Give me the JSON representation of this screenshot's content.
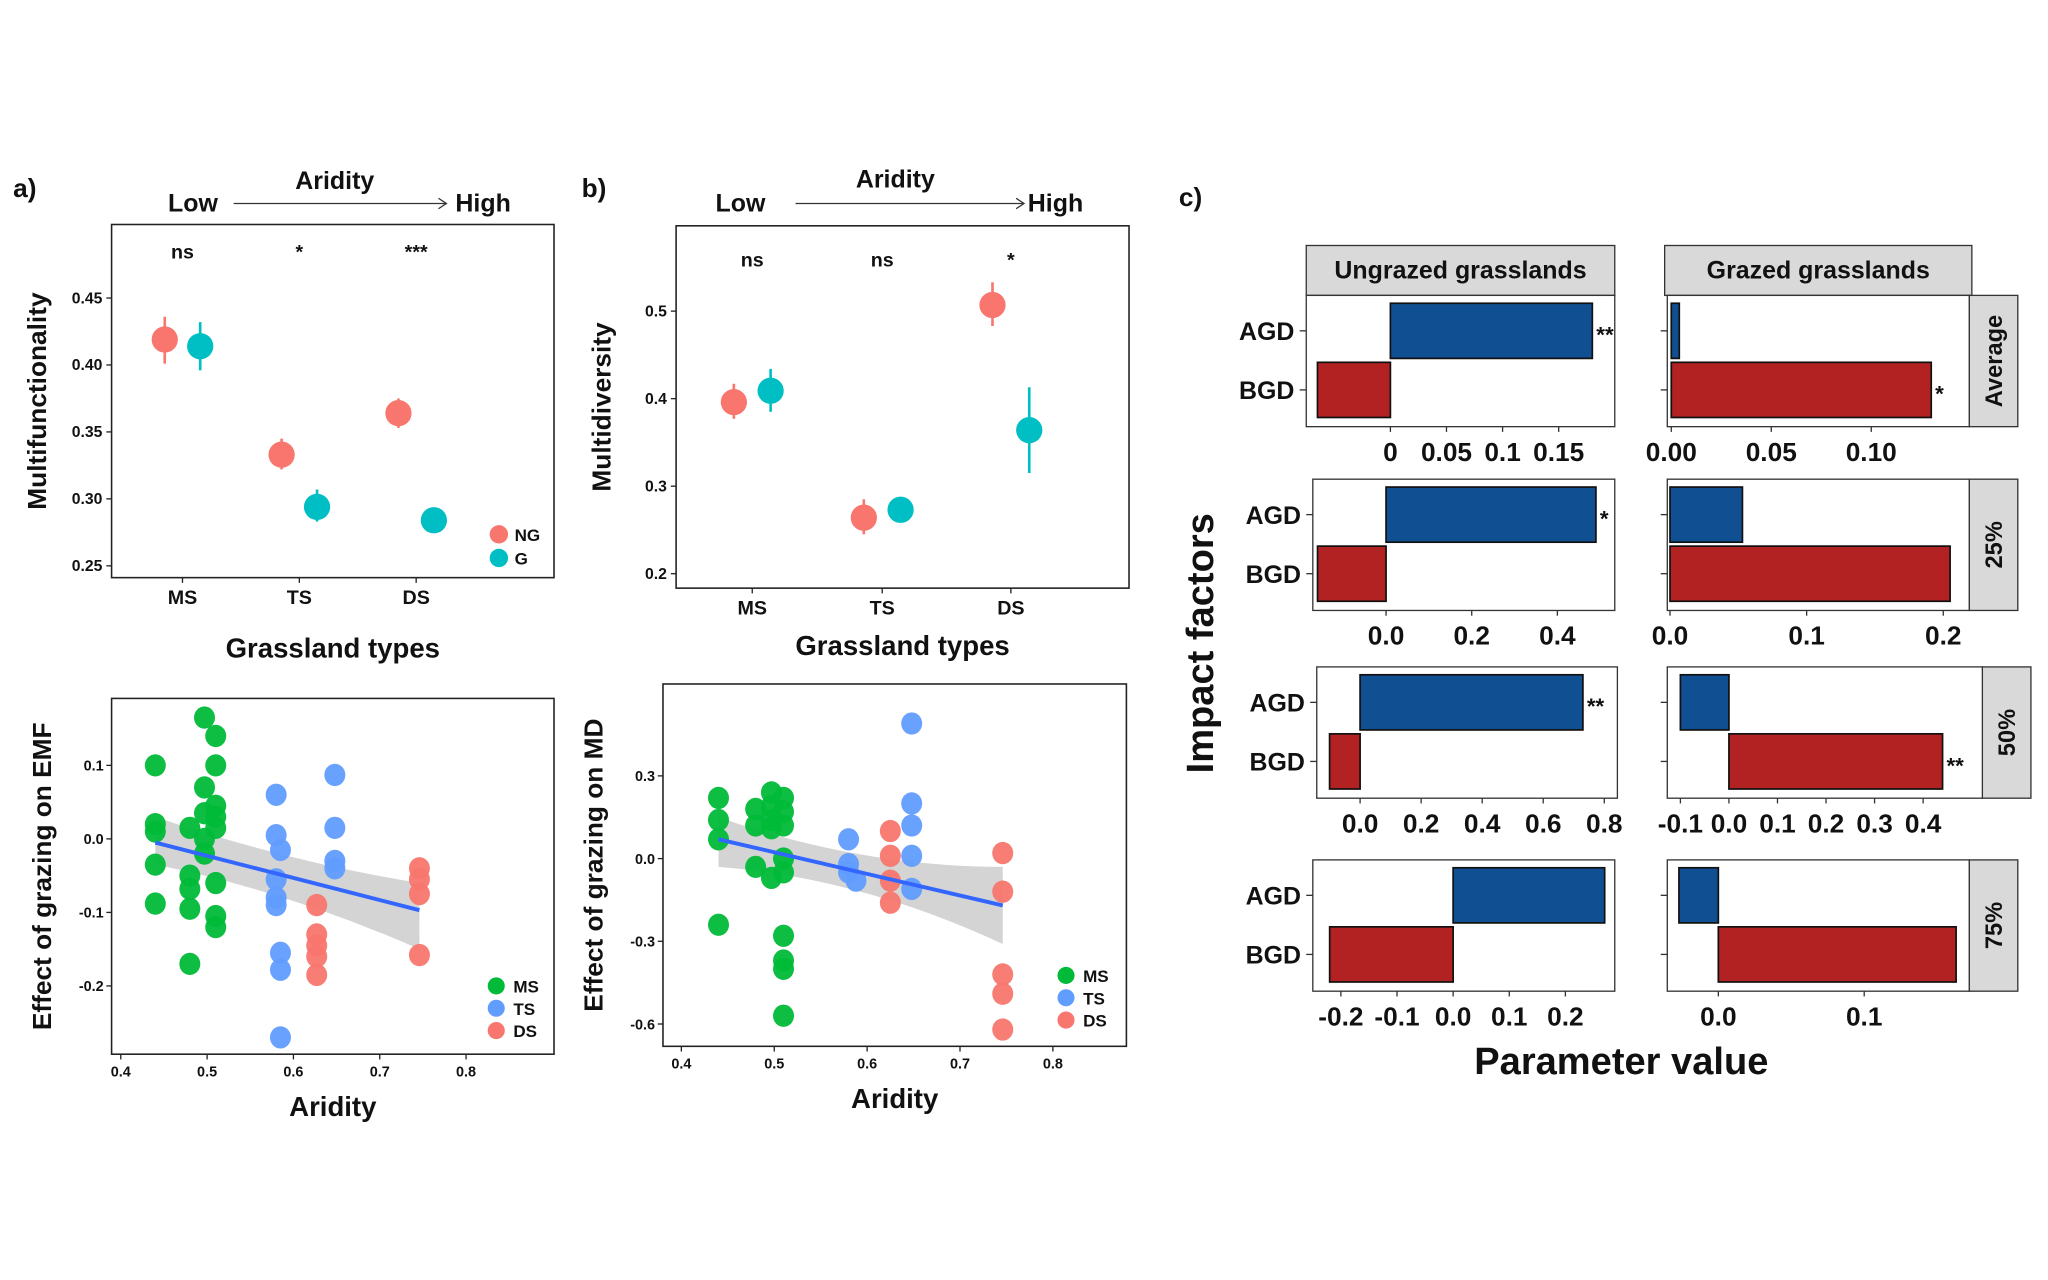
{
  "colors": {
    "NG": "#f8766d",
    "G": "#00bfc4",
    "MS": "#00ba38",
    "TS": "#619cff",
    "DS": "#f8766d",
    "line": "#3366ff",
    "band": "#cccccc",
    "AGD": "#114f93",
    "BGD": "#b22222",
    "strip": "#d9d9d9"
  },
  "chart_data": [
    {
      "id": "a",
      "panel_label": "a)",
      "type": "scatter",
      "header": {
        "title": "Aridity",
        "low": "Low",
        "high": "High"
      },
      "categories": [
        "MS",
        "TS",
        "DS"
      ],
      "ylabel": "Multifunctionality",
      "xlabel": "Grassland types",
      "yticks": [
        "0.25",
        "0.30",
        "0.35",
        "0.40",
        "0.45"
      ],
      "ylim": [
        0.245,
        0.49
      ],
      "significance": [
        "ns",
        "*",
        "***"
      ],
      "legend": [
        "NG",
        "G"
      ],
      "legend_placement": "bottom-right",
      "series": [
        {
          "name": "NG",
          "values": [
            0.419,
            0.333,
            0.364
          ],
          "lower": [
            0.401,
            0.322,
            0.353
          ],
          "upper": [
            0.436,
            0.345,
            0.375
          ]
        },
        {
          "name": "G",
          "values": [
            0.414,
            0.294,
            0.284
          ],
          "lower": [
            0.396,
            0.283,
            0.283
          ],
          "upper": [
            0.432,
            0.307,
            0.285
          ]
        }
      ]
    },
    {
      "id": "b",
      "panel_label": "b)",
      "type": "scatter",
      "header": {
        "title": "Aridity",
        "low": "Low",
        "high": "High"
      },
      "categories": [
        "MS",
        "TS",
        "DS"
      ],
      "ylabel": "Multidiversity",
      "xlabel": "Grassland types",
      "yticks": [
        "0.2",
        "0.3",
        "0.4",
        "0.5"
      ],
      "ylim": [
        0.19,
        0.6
      ],
      "significance": [
        "ns",
        "ns",
        "*"
      ],
      "series": [
        {
          "name": "NG",
          "values": [
            0.396,
            0.264,
            0.507
          ],
          "lower": [
            0.377,
            0.245,
            0.483
          ],
          "upper": [
            0.417,
            0.285,
            0.533
          ]
        },
        {
          "name": "G",
          "values": [
            0.409,
            0.273,
            0.364
          ],
          "lower": [
            0.385,
            0.272,
            0.315
          ],
          "upper": [
            0.434,
            0.274,
            0.413
          ]
        }
      ]
    },
    {
      "id": "a2",
      "type": "scatter",
      "xlabel": "Aridity",
      "ylabel": "Effect of grazing on EMF",
      "xticks": [
        "0.4",
        "0.5",
        "0.6",
        "0.7",
        "0.8"
      ],
      "yticks": [
        "-0.2",
        "-0.1",
        "0.0",
        "0.1"
      ],
      "xlim": [
        0.39,
        0.895
      ],
      "ylim": [
        -0.285,
        0.2
      ],
      "legend": [
        "MS",
        "TS",
        "DS"
      ],
      "legend_placement": "bottom-right",
      "fit": {
        "x": [
          0.44,
          0.746
        ],
        "y": [
          -0.005,
          -0.097
        ],
        "band_lower": [
          -0.035,
          -0.15
        ],
        "band_upper": [
          0.03,
          -0.06
        ]
      },
      "points": {
        "MS": [
          [
            0.44,
            0.1
          ],
          [
            0.44,
            0.02
          ],
          [
            0.44,
            0.01
          ],
          [
            0.44,
            -0.035
          ],
          [
            0.44,
            -0.088
          ],
          [
            0.48,
            0.015
          ],
          [
            0.48,
            -0.05
          ],
          [
            0.48,
            -0.068
          ],
          [
            0.48,
            -0.095
          ],
          [
            0.48,
            -0.17
          ],
          [
            0.497,
            0.165
          ],
          [
            0.497,
            0.07
          ],
          [
            0.497,
            0.035
          ],
          [
            0.497,
            0.0
          ],
          [
            0.497,
            -0.02
          ],
          [
            0.51,
            0.14
          ],
          [
            0.51,
            0.1
          ],
          [
            0.51,
            0.045
          ],
          [
            0.51,
            0.03
          ],
          [
            0.51,
            0.015
          ],
          [
            0.51,
            -0.06
          ],
          [
            0.51,
            -0.105
          ],
          [
            0.51,
            -0.12
          ]
        ],
        "TS": [
          [
            0.58,
            0.06
          ],
          [
            0.58,
            0.005
          ],
          [
            0.58,
            -0.055
          ],
          [
            0.58,
            -0.08
          ],
          [
            0.58,
            -0.09
          ],
          [
            0.585,
            -0.015
          ],
          [
            0.585,
            -0.155
          ],
          [
            0.585,
            -0.178
          ],
          [
            0.585,
            -0.27
          ],
          [
            0.648,
            0.087
          ],
          [
            0.648,
            0.015
          ],
          [
            0.648,
            -0.03
          ],
          [
            0.648,
            -0.04
          ]
        ],
        "DS": [
          [
            0.627,
            -0.09
          ],
          [
            0.627,
            -0.13
          ],
          [
            0.627,
            -0.145
          ],
          [
            0.627,
            -0.16
          ],
          [
            0.627,
            -0.185
          ],
          [
            0.746,
            -0.04
          ],
          [
            0.746,
            -0.055
          ],
          [
            0.746,
            -0.075
          ],
          [
            0.746,
            -0.158
          ]
        ]
      }
    },
    {
      "id": "b2",
      "type": "scatter",
      "xlabel": "Aridity",
      "ylabel": "Effect of grazing on MD",
      "xticks": [
        "0.4",
        "0.5",
        "0.6",
        "0.7",
        "0.8"
      ],
      "yticks": [
        "-0.6",
        "-0.3",
        "0.0",
        "0.3"
      ],
      "xlim": [
        0.38,
        0.88
      ],
      "ylim": [
        -0.68,
        0.63
      ],
      "legend": [
        "MS",
        "TS",
        "DS"
      ],
      "legend_placement": "bottom-right",
      "fit": {
        "x": [
          0.44,
          0.746
        ],
        "y": [
          0.07,
          -0.17
        ],
        "band_lower": [
          -0.03,
          -0.31
        ],
        "band_upper": [
          0.15,
          -0.03
        ]
      },
      "points": {
        "MS": [
          [
            0.44,
            0.22
          ],
          [
            0.44,
            0.14
          ],
          [
            0.44,
            0.07
          ],
          [
            0.44,
            -0.24
          ],
          [
            0.48,
            0.18
          ],
          [
            0.48,
            0.12
          ],
          [
            0.48,
            -0.03
          ],
          [
            0.497,
            0.24
          ],
          [
            0.497,
            0.19
          ],
          [
            0.497,
            0.14
          ],
          [
            0.497,
            0.11
          ],
          [
            0.497,
            -0.07
          ],
          [
            0.51,
            0.22
          ],
          [
            0.51,
            0.17
          ],
          [
            0.51,
            0.12
          ],
          [
            0.51,
            0.0
          ],
          [
            0.51,
            -0.05
          ],
          [
            0.51,
            -0.28
          ],
          [
            0.51,
            -0.37
          ],
          [
            0.51,
            -0.4
          ],
          [
            0.51,
            -0.57
          ]
        ],
        "TS": [
          [
            0.58,
            0.07
          ],
          [
            0.58,
            -0.02
          ],
          [
            0.58,
            -0.05
          ],
          [
            0.588,
            -0.08
          ],
          [
            0.648,
            0.49
          ],
          [
            0.648,
            0.2
          ],
          [
            0.648,
            0.12
          ],
          [
            0.648,
            0.01
          ],
          [
            0.648,
            -0.11
          ]
        ],
        "DS": [
          [
            0.625,
            0.1
          ],
          [
            0.625,
            0.01
          ],
          [
            0.625,
            -0.08
          ],
          [
            0.625,
            -0.16
          ],
          [
            0.746,
            0.02
          ],
          [
            0.746,
            -0.12
          ],
          [
            0.746,
            -0.42
          ],
          [
            0.746,
            -0.49
          ],
          [
            0.746,
            -0.62
          ]
        ]
      }
    },
    {
      "id": "c",
      "panel_label": "c)",
      "type": "bar",
      "orientation": "horizontal",
      "xlabel": "Parameter value",
      "ylabel": "Impact factors",
      "columns": [
        "Ungrazed grasslands",
        "Grazed grasslands"
      ],
      "rows": [
        "Average",
        "25%",
        "50%",
        "75%"
      ],
      "categories": [
        "AGD",
        "BGD"
      ],
      "panels": [
        [
          {
            "values": [
              0.18,
              -0.065
            ],
            "sig": [
              "**",
              ""
            ],
            "xticks": [
              0,
              0.05,
              0.1,
              0.15
            ],
            "ticklabels": [
              "0",
              "0.05",
              "0.1",
              "0.15"
            ],
            "xlim": [
              -0.075,
              0.2
            ]
          },
          {
            "values": [
              0.004,
              0.13
            ],
            "sig": [
              "",
              "*"
            ],
            "xticks": [
              0,
              0.05,
              0.1
            ],
            "ticklabels": [
              "0.00",
              "0.05",
              "0.10"
            ],
            "xlim": [
              -0.002,
              0.149
            ]
          }
        ],
        [
          {
            "values": [
              0.49,
              -0.16
            ],
            "sig": [
              "*",
              ""
            ],
            "xticks": [
              0,
              0.2,
              0.4
            ],
            "ticklabels": [
              "0.0",
              "0.2",
              "0.4"
            ],
            "xlim": [
              -0.171,
              0.534
            ]
          },
          {
            "values": [
              0.053,
              0.205
            ],
            "sig": [
              "",
              ""
            ],
            "xticks": [
              0,
              0.1,
              0.2
            ],
            "ticklabels": [
              "0.0",
              "0.1",
              "0.2"
            ],
            "xlim": [
              -0.002,
              0.219
            ]
          }
        ],
        [
          {
            "values": [
              0.73,
              -0.1
            ],
            "sig": [
              "**",
              ""
            ],
            "xticks": [
              0,
              0.2,
              0.4,
              0.6,
              0.8
            ],
            "ticklabels": [
              "0.0",
              "0.2",
              "0.4",
              "0.6",
              "0.8"
            ],
            "xlim": [
              -0.142,
              0.843
            ]
          },
          {
            "values": [
              -0.1,
              0.44
            ],
            "sig": [
              "",
              "**"
            ],
            "xticks": [
              -0.1,
              0,
              0.1,
              0.2,
              0.3,
              0.4
            ],
            "ticklabels": [
              "-0.1",
              "0.0",
              "0.1",
              "0.2",
              "0.3",
              "0.4"
            ],
            "xlim": [
              -0.127,
              0.522
            ]
          }
        ],
        [
          {
            "values": [
              0.27,
              -0.22
            ],
            "sig": [
              "",
              ""
            ],
            "xticks": [
              -0.2,
              -0.1,
              0,
              0.1,
              0.2
            ],
            "ticklabels": [
              "-0.2",
              "-0.1",
              "0.0",
              "0.1",
              "0.2"
            ],
            "xlim": [
              -0.25,
              0.288
            ]
          },
          {
            "values": [
              -0.027,
              0.163
            ],
            "sig": [
              "",
              ""
            ],
            "xticks": [
              0,
              0.1
            ],
            "ticklabels": [
              "0.0",
              "0.1"
            ],
            "xlim": [
              -0.035,
              0.172
            ]
          }
        ]
      ]
    }
  ]
}
